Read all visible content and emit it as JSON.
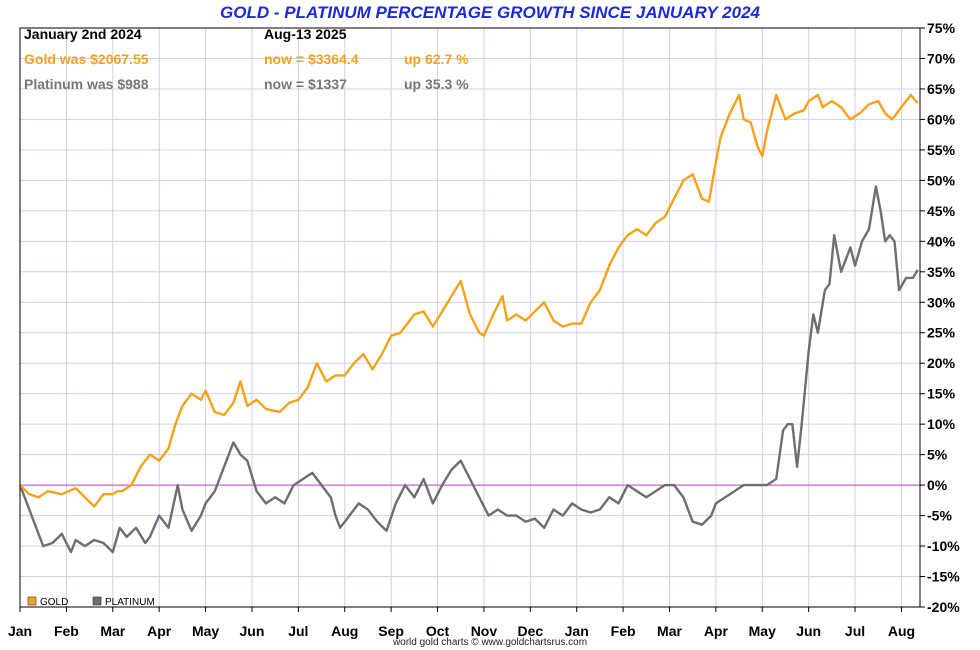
{
  "chart_data": {
    "type": "line",
    "title": "GOLD - PLATINUM PERCENTAGE GROWTH SINCE JANUARY 2024",
    "ylim": [
      -20,
      75
    ],
    "y_ticks": [
      75,
      70,
      65,
      60,
      55,
      50,
      45,
      40,
      35,
      30,
      25,
      20,
      15,
      10,
      5,
      0,
      -5,
      -10,
      -15,
      -20
    ],
    "y_tick_labels": [
      "75%",
      "70%",
      "65%",
      "60%",
      "55%",
      "50%",
      "45%",
      "40%",
      "35%",
      "30%",
      "25%",
      "20%",
      "15%",
      "10%",
      "5%",
      "0%",
      "-5%",
      "-10%",
      "-15%",
      "-20%"
    ],
    "x_range_months": [
      0,
      19.4
    ],
    "x_tick_labels": [
      "Jan",
      "Feb",
      "Mar",
      "Apr",
      "May",
      "Jun",
      "Jul",
      "Aug",
      "Sep",
      "Oct",
      "Nov",
      "Dec",
      "Jan",
      "Feb",
      "Mar",
      "Apr",
      "May",
      "Jun",
      "Jul",
      "Aug"
    ],
    "x_unit": "months since Jan 2024",
    "grid": true,
    "legend_position": "bottom-left",
    "annotations": {
      "start_label": "January 2nd 2024",
      "end_label": "Aug-13  2025",
      "gold_was": "Gold was $2067.55",
      "gold_now": "now = $3364.4",
      "gold_up": "up 62.7 %",
      "plat_was": "Platinum was $988",
      "plat_now": "now = $1337",
      "plat_up": "up 35.3 %"
    },
    "legend": [
      "GOLD",
      "PLATINUM"
    ],
    "footer": "world gold charts © www.goldchartsrus.com",
    "colors": {
      "gold": "#f5a21a",
      "platinum": "#6e6e6e",
      "zero": "#cc44cc",
      "grid": "#d0d0e6",
      "title": "#1a2ad6"
    },
    "series": [
      {
        "name": "GOLD",
        "x": [
          0,
          0.2,
          0.4,
          0.6,
          0.9,
          1.2,
          1.4,
          1.6,
          1.8,
          2.0,
          2.1,
          2.2,
          2.4,
          2.6,
          2.8,
          3.0,
          3.2,
          3.35,
          3.5,
          3.7,
          3.9,
          4.0,
          4.2,
          4.4,
          4.6,
          4.75,
          4.9,
          5.1,
          5.3,
          5.6,
          5.8,
          6.0,
          6.2,
          6.4,
          6.6,
          6.8,
          7.0,
          7.2,
          7.4,
          7.6,
          7.8,
          8.0,
          8.2,
          8.5,
          8.7,
          8.9,
          9.1,
          9.3,
          9.5,
          9.7,
          9.9,
          10.0,
          10.2,
          10.4,
          10.5,
          10.7,
          10.9,
          11.1,
          11.3,
          11.5,
          11.7,
          11.9,
          12.1,
          12.3,
          12.5,
          12.7,
          12.9,
          13.1,
          13.3,
          13.5,
          13.7,
          13.9,
          14.1,
          14.3,
          14.5,
          14.7,
          14.85,
          15.0,
          15.1,
          15.3,
          15.5,
          15.6,
          15.75,
          15.9,
          16.0,
          16.1,
          16.3,
          16.5,
          16.7,
          16.9,
          17.0,
          17.2,
          17.3,
          17.5,
          17.7,
          17.9,
          18.1,
          18.3,
          18.5,
          18.65,
          18.8,
          19.0,
          19.2,
          19.35
        ],
        "y": [
          0,
          -1.5,
          -2,
          -1,
          -1.5,
          -0.5,
          -2,
          -3.5,
          -1.5,
          -1.5,
          -1,
          -1,
          0,
          3,
          5,
          4,
          6,
          10,
          13,
          15,
          14,
          15.5,
          12,
          11.5,
          13.5,
          17,
          13,
          14,
          12.5,
          12,
          13.5,
          14,
          16,
          20,
          17,
          18,
          18,
          20,
          21.5,
          19,
          21.5,
          24.5,
          25,
          28,
          28.5,
          26,
          28.5,
          31,
          33.5,
          28,
          25,
          24.5,
          28,
          31,
          27,
          28,
          27,
          28.5,
          30,
          27,
          26,
          26.5,
          26.5,
          30,
          32,
          36,
          39,
          41,
          42,
          41,
          43,
          44,
          47,
          50,
          51,
          47,
          46.5,
          53,
          57,
          61,
          64,
          60,
          59.5,
          55.5,
          54,
          58,
          64,
          60,
          61,
          61.5,
          63,
          64,
          62,
          63,
          62,
          60,
          61,
          62.5,
          63,
          61,
          60,
          62,
          64,
          62.7
        ]
      },
      {
        "name": "PLATINUM",
        "x": [
          0,
          0.2,
          0.35,
          0.5,
          0.7,
          0.9,
          1.1,
          1.2,
          1.4,
          1.6,
          1.8,
          2.0,
          2.15,
          2.3,
          2.5,
          2.7,
          2.8,
          3.0,
          3.2,
          3.4,
          3.5,
          3.7,
          3.9,
          4.0,
          4.2,
          4.4,
          4.6,
          4.75,
          4.9,
          5.1,
          5.3,
          5.5,
          5.7,
          5.9,
          6.1,
          6.3,
          6.5,
          6.7,
          6.8,
          6.9,
          7.1,
          7.3,
          7.5,
          7.7,
          7.9,
          8.1,
          8.3,
          8.5,
          8.7,
          8.9,
          9.1,
          9.3,
          9.5,
          9.7,
          9.9,
          10.1,
          10.3,
          10.5,
          10.7,
          10.9,
          11.1,
          11.3,
          11.5,
          11.7,
          11.9,
          12.1,
          12.3,
          12.5,
          12.7,
          12.9,
          13.1,
          13.3,
          13.5,
          13.7,
          13.9,
          14.1,
          14.3,
          14.5,
          14.7,
          14.9,
          15.0,
          15.2,
          15.4,
          15.6,
          15.8,
          15.95,
          16.1,
          16.3,
          16.45,
          16.55,
          16.65,
          16.75,
          16.85,
          17.0,
          17.1,
          17.2,
          17.35,
          17.45,
          17.55,
          17.7,
          17.9,
          18.0,
          18.15,
          18.3,
          18.45,
          18.55,
          18.65,
          18.75,
          18.85,
          18.95,
          19.1,
          19.25,
          19.35
        ],
        "y": [
          0,
          -4,
          -7,
          -10,
          -9.5,
          -8,
          -11,
          -9,
          -10,
          -9,
          -9.5,
          -11,
          -7,
          -8.5,
          -7,
          -9.5,
          -8.5,
          -5,
          -7,
          0,
          -4,
          -7.5,
          -5,
          -3,
          -1,
          3,
          7,
          5,
          4,
          -1,
          -3,
          -2,
          -3,
          0,
          1,
          2,
          0,
          -2,
          -5,
          -7,
          -5,
          -3,
          -4,
          -6,
          -7.5,
          -3,
          0,
          -2,
          1,
          -3,
          0,
          2.5,
          4,
          1,
          -2,
          -5,
          -4,
          -5,
          -5,
          -6,
          -5.5,
          -7,
          -4,
          -5,
          -3,
          -4,
          -4.5,
          -4,
          -2,
          -3,
          0,
          -1,
          -2,
          -1,
          0,
          0,
          -2,
          -6,
          -6.5,
          -5,
          -3,
          -2,
          -1,
          0,
          0,
          0,
          0,
          1,
          9,
          10,
          10,
          3,
          10,
          22,
          28,
          25,
          32,
          33,
          41,
          35,
          39,
          36,
          40,
          42,
          49,
          45,
          40,
          41,
          40,
          32,
          34,
          34,
          35.3
        ]
      }
    ]
  }
}
